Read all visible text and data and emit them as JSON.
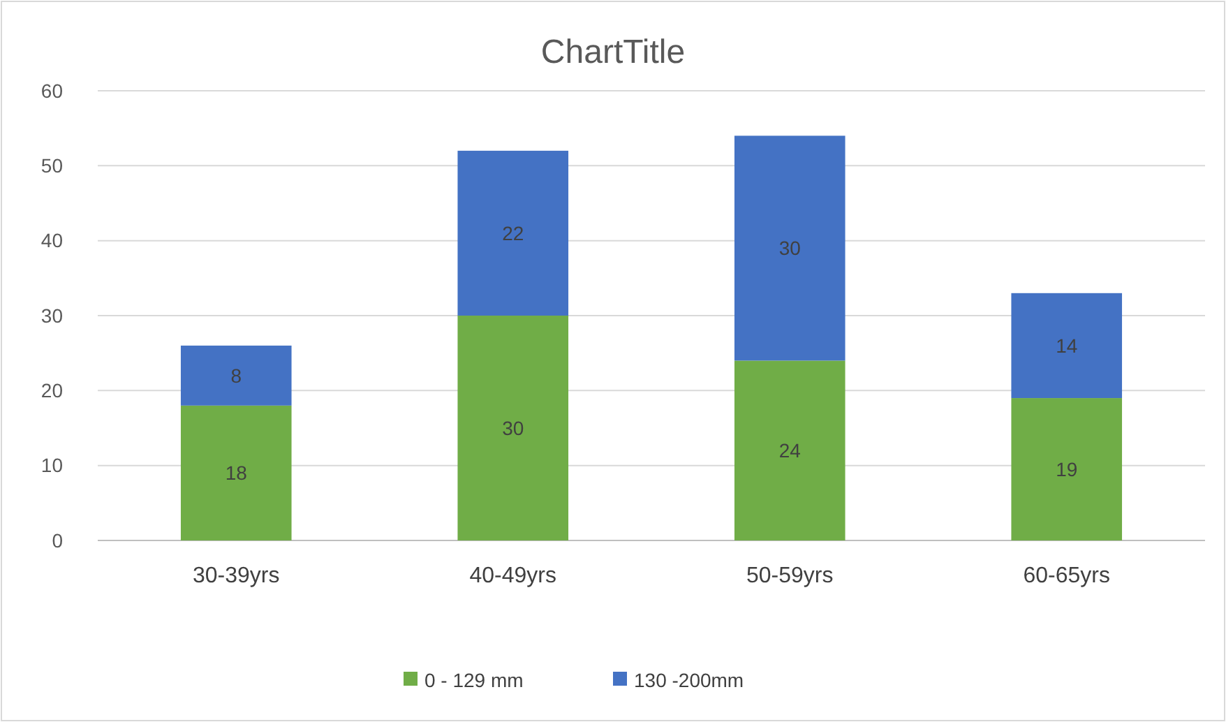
{
  "chart_data": {
    "type": "bar",
    "title": "ChartTitle",
    "categories": [
      "30-39yrs",
      "40-49yrs",
      "50-59yrs",
      "60-65yrs"
    ],
    "stacked": true,
    "series": [
      {
        "name": "0 - 129 mm",
        "color": "#70ad47",
        "values": [
          18,
          30,
          24,
          19
        ]
      },
      {
        "name": "130 -200mm",
        "color": "#4472c4",
        "values": [
          8,
          22,
          30,
          14
        ]
      }
    ],
    "ylim": [
      0,
      60
    ],
    "yticks": [
      0,
      10,
      20,
      30,
      40,
      50,
      60
    ],
    "grid": "y",
    "data_labels": true,
    "legend": "bottom"
  }
}
